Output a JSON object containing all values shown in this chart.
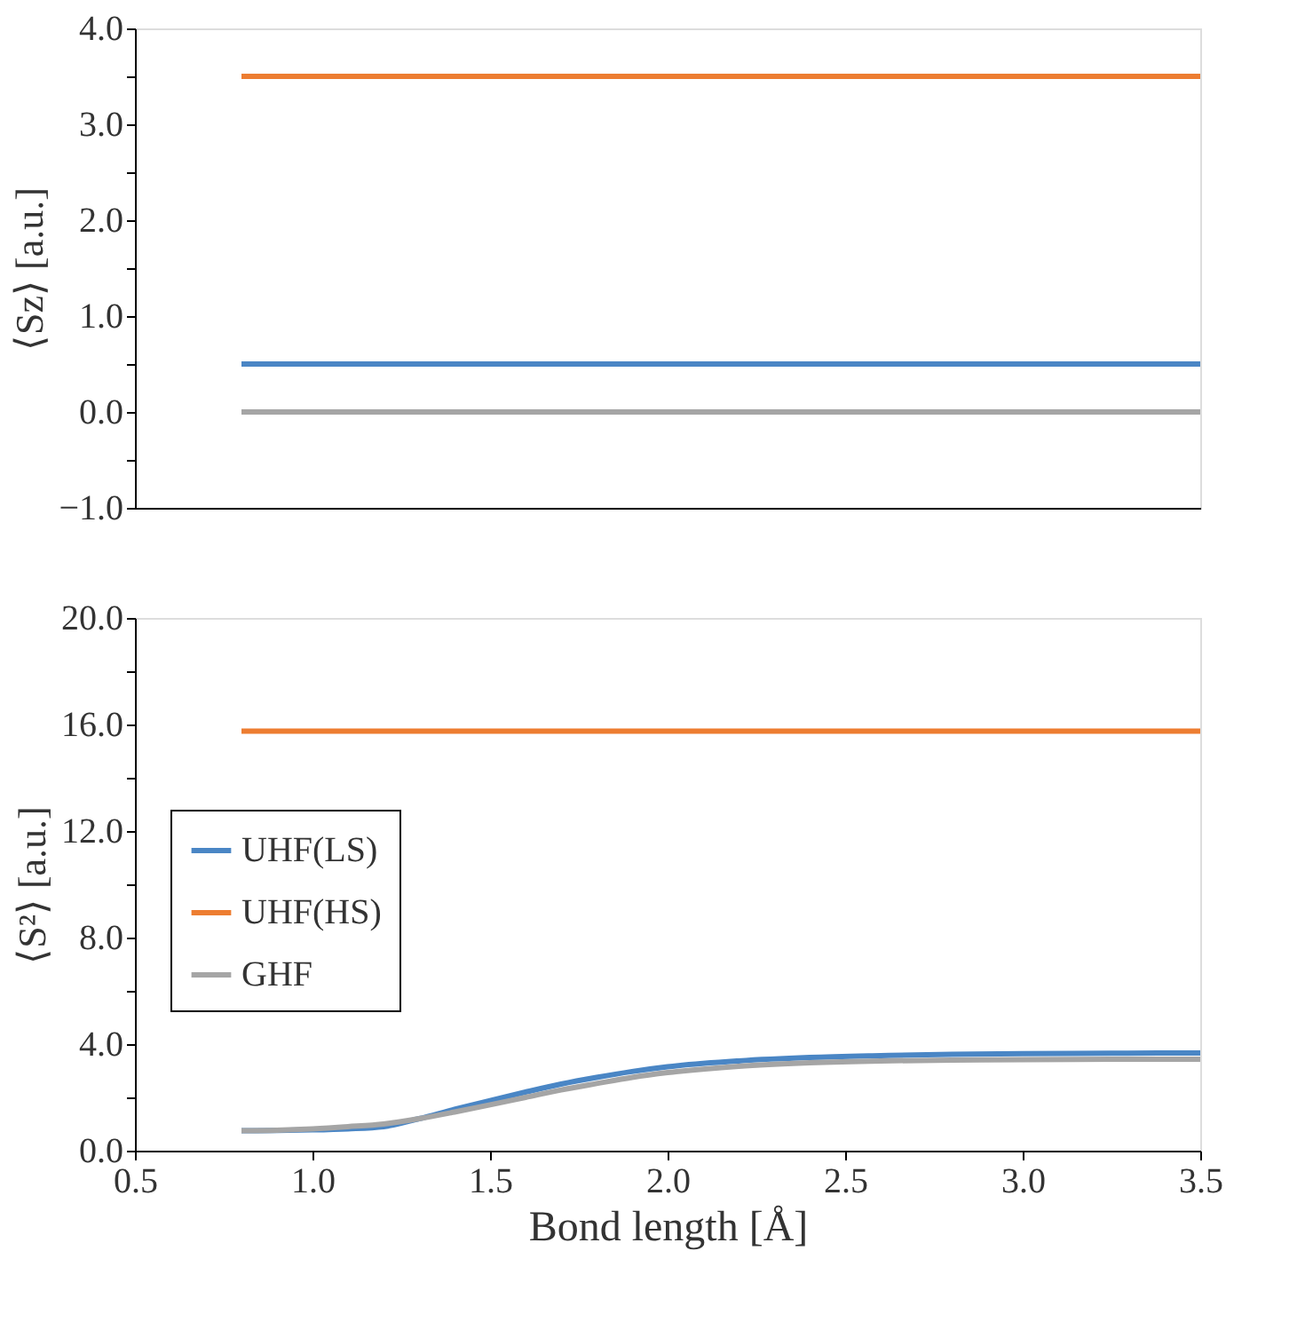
{
  "chart_data": [
    {
      "type": "line",
      "ylabel": "⟨Sz⟩ [a.u.]",
      "xlim": [
        0.5,
        3.5
      ],
      "ylim": [
        -1.0,
        4.0
      ],
      "yticks": [
        {
          "value": -1.0,
          "label": "−1.0"
        },
        {
          "value": -0.5,
          "label": null
        },
        {
          "value": 0.0,
          "label": "0.0"
        },
        {
          "value": 0.5,
          "label": null
        },
        {
          "value": 1.0,
          "label": "1.0"
        },
        {
          "value": 1.5,
          "label": null
        },
        {
          "value": 2.0,
          "label": "2.0"
        },
        {
          "value": 2.5,
          "label": null
        },
        {
          "value": 3.0,
          "label": "3.0"
        },
        {
          "value": 3.5,
          "label": null
        },
        {
          "value": 4.0,
          "label": "4.0"
        }
      ],
      "tick_labels": "y",
      "grid": false,
      "line_style": "solid",
      "marker": "none",
      "series": [
        {
          "color": "#a5a5a5",
          "x": [
            0.8,
            3.5
          ],
          "values": [
            0.0,
            0.0
          ]
        },
        {
          "color": "#ed7d31",
          "x": [
            0.8,
            3.5
          ],
          "values": [
            3.5,
            3.5
          ]
        },
        {
          "color": "#4a86c5",
          "x": [
            0.8,
            3.5
          ],
          "values": [
            0.5,
            0.5
          ]
        }
      ]
    },
    {
      "type": "line",
      "xlabel": "Bond length [Å]",
      "ylabel": "⟨S²⟩ [a.u.]",
      "xlim": [
        0.5,
        3.5
      ],
      "ylim": [
        0.0,
        20.0
      ],
      "xticks": [
        0.5,
        {
          "value": 1.0,
          "label": "1.0"
        },
        1.5,
        {
          "value": 2.0,
          "label": "2.0"
        },
        2.5,
        {
          "value": 3.0,
          "label": "3.0"
        },
        3.5
      ],
      "yticks": [
        {
          "value": 0.0,
          "label": "0.0"
        },
        {
          "value": 2.0,
          "label": null
        },
        {
          "value": 4.0,
          "label": "4.0"
        },
        {
          "value": 6.0,
          "label": null
        },
        {
          "value": 8.0,
          "label": "8.0"
        },
        {
          "value": 10.0,
          "label": null
        },
        {
          "value": 12.0,
          "label": "12.0"
        },
        {
          "value": 14.0,
          "label": null
        },
        {
          "value": 16.0,
          "label": "16.0"
        },
        {
          "value": 18.0,
          "label": null
        },
        {
          "value": 20.0,
          "label": "20.0"
        }
      ],
      "grid": false,
      "legend": "left",
      "line_style": "solid",
      "marker": "none",
      "series": [
        {
          "name": "UHF(LS)",
          "color": "#4a86c5",
          "x": [
            0.8,
            0.9,
            1.0,
            1.1,
            1.2,
            1.3,
            1.4,
            1.5,
            1.6,
            1.7,
            1.8,
            1.9,
            2.0,
            2.2,
            2.4,
            2.6,
            2.8,
            3.0,
            3.25,
            3.5
          ],
          "values": [
            0.75,
            0.76,
            0.78,
            0.82,
            0.9,
            1.2,
            1.55,
            1.88,
            2.2,
            2.5,
            2.75,
            2.97,
            3.15,
            3.37,
            3.5,
            3.57,
            3.62,
            3.64,
            3.66,
            3.67
          ]
        },
        {
          "name": "UHF(HS)",
          "color": "#ed7d31",
          "x": [
            0.8,
            3.5
          ],
          "values": [
            15.75,
            15.75
          ]
        },
        {
          "name": "GHF",
          "color": "#a5a5a5",
          "x": [
            0.8,
            0.9,
            1.0,
            1.1,
            1.2,
            1.3,
            1.4,
            1.5,
            1.6,
            1.7,
            1.8,
            1.9,
            2.0,
            2.2,
            2.4,
            2.6,
            2.8,
            3.0,
            3.25,
            3.5
          ],
          "values": [
            0.75,
            0.77,
            0.82,
            0.9,
            1.0,
            1.2,
            1.45,
            1.72,
            2.0,
            2.28,
            2.52,
            2.75,
            2.93,
            3.17,
            3.3,
            3.37,
            3.4,
            3.42,
            3.43,
            3.43
          ]
        }
      ]
    }
  ]
}
